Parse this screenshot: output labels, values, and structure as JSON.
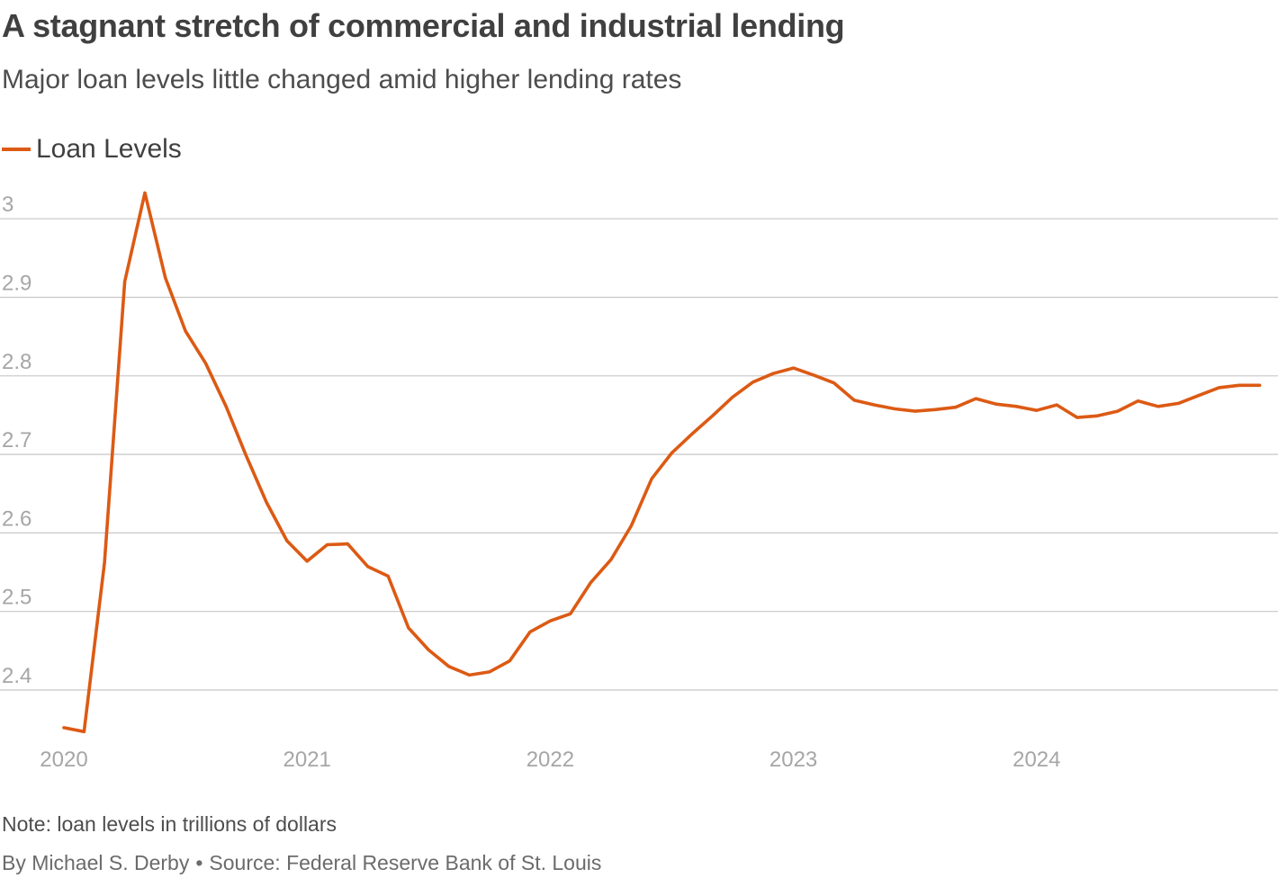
{
  "chart_data": {
    "type": "line",
    "title": "A stagnant stretch of commercial and industrial lending",
    "subtitle": "Major loan levels little changed amid higher lending rates",
    "legend": [
      "Loan Levels"
    ],
    "xlabel": "",
    "ylabel": "",
    "x_ticks": [
      2020,
      2021,
      2022,
      2023,
      2024
    ],
    "y_ticks": [
      2.4,
      2.5,
      2.6,
      2.7,
      2.8,
      2.9,
      3
    ],
    "y_tick_labels": [
      "2.4",
      "2.5",
      "2.6",
      "2.7",
      "2.8",
      "2.9",
      "3"
    ],
    "xlim": [
      2019.9,
      2025.0
    ],
    "ylim": [
      2.35,
      3.03
    ],
    "grid": true,
    "series": [
      {
        "name": "Loan Levels",
        "color": "#dc5a14",
        "x": [
          2020.0,
          2020.083,
          2020.167,
          2020.25,
          2020.333,
          2020.417,
          2020.5,
          2020.583,
          2020.667,
          2020.75,
          2020.833,
          2020.917,
          2021.0,
          2021.083,
          2021.167,
          2021.25,
          2021.333,
          2021.417,
          2021.5,
          2021.583,
          2021.667,
          2021.75,
          2021.833,
          2021.917,
          2022.0,
          2022.083,
          2022.167,
          2022.25,
          2022.333,
          2022.417,
          2022.5,
          2022.583,
          2022.667,
          2022.75,
          2022.833,
          2022.917,
          2023.0,
          2023.083,
          2023.167,
          2023.25,
          2023.333,
          2023.417,
          2023.5,
          2023.583,
          2023.667,
          2023.75,
          2023.833,
          2023.917,
          2024.0,
          2024.083,
          2024.167,
          2024.25,
          2024.333,
          2024.417,
          2024.5,
          2024.583,
          2024.667,
          2024.75,
          2024.833,
          2024.917
        ],
        "values": [
          2.352,
          2.347,
          2.562,
          2.92,
          3.033,
          2.925,
          2.857,
          2.816,
          2.761,
          2.698,
          2.639,
          2.59,
          2.564,
          2.585,
          2.586,
          2.557,
          2.545,
          2.479,
          2.451,
          2.43,
          2.419,
          2.423,
          2.437,
          2.474,
          2.488,
          2.497,
          2.537,
          2.566,
          2.609,
          2.669,
          2.702,
          2.726,
          2.749,
          2.773,
          2.792,
          2.803,
          2.81,
          2.801,
          2.791,
          2.769,
          2.763,
          2.758,
          2.755,
          2.757,
          2.76,
          2.771,
          2.764,
          2.761,
          2.756,
          2.763,
          2.747,
          2.749,
          2.755,
          2.768,
          2.761,
          2.765,
          2.775,
          2.785,
          2.788,
          2.788
        ]
      }
    ]
  },
  "footer": {
    "note": "Note: loan levels in trillions of dollars",
    "byline": "By Michael S. Derby",
    "separator": "•",
    "source": "Source: Federal Reserve Bank of St. Louis"
  }
}
